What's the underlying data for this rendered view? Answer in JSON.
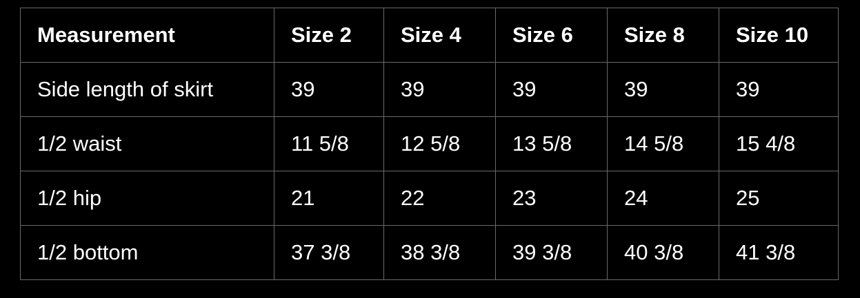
{
  "table": {
    "headers": [
      "Measurement",
      "Size 2",
      "Size 4",
      "Size 6",
      "Size 8",
      "Size 10"
    ],
    "rows": [
      [
        "Side length of skirt",
        "39",
        "39",
        "39",
        "39",
        "39"
      ],
      [
        "1/2 waist",
        "11 5/8",
        "12 5/8",
        "13 5/8",
        "14 5/8",
        "15 4/8"
      ],
      [
        "1/2 hip",
        "21",
        "22",
        "23",
        "24",
        "25"
      ],
      [
        "1/2 bottom",
        "37 3/8",
        "38 3/8",
        "39 3/8",
        "40 3/8",
        "41 3/8"
      ]
    ]
  }
}
